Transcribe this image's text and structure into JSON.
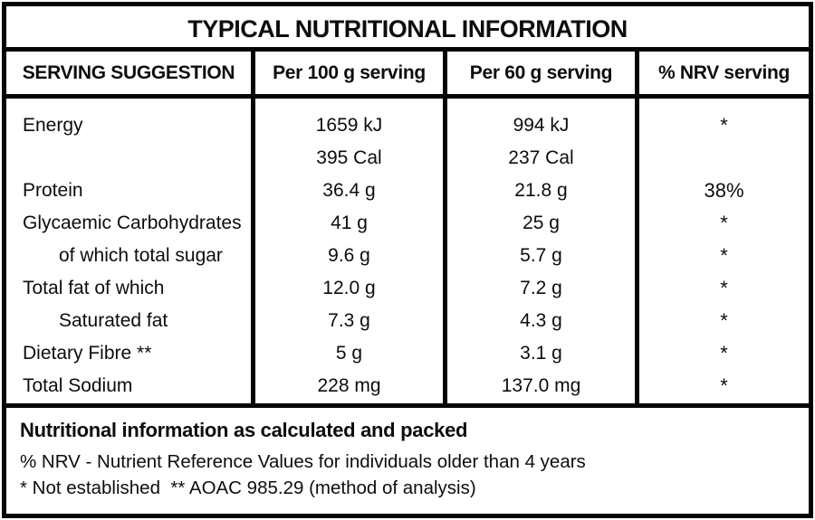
{
  "title": "TYPICAL NUTRITIONAL INFORMATION",
  "table": {
    "columns": [
      "SERVING SUGGESTION",
      "Per 100 g serving",
      "Per 60 g serving",
      "% NRV serving"
    ],
    "rows": [
      {
        "label": "Energy",
        "per100": "1659 kJ",
        "per60": "994 kJ",
        "nrv": "*"
      },
      {
        "label": "",
        "per100": "395 Cal",
        "per60": "237 Cal",
        "nrv": ""
      },
      {
        "label": "Protein",
        "per100": "36.4 g",
        "per60": "21.8 g",
        "nrv": "38%"
      },
      {
        "label": "Glycaemic Carbohydrates",
        "per100": "41 g",
        "per60": "25 g",
        "nrv": "*"
      },
      {
        "label": "of which total sugar",
        "per100": "9.6 g",
        "per60": "5.7 g",
        "nrv": "*"
      },
      {
        "label": "Total fat of which",
        "per100": "12.0 g",
        "per60": "7.2 g",
        "nrv": "*"
      },
      {
        "label": "Saturated fat",
        "per100": "7.3 g",
        "per60": "4.3 g",
        "nrv": "*"
      },
      {
        "label": "Dietary Fibre **",
        "per100": "5 g",
        "per60": "3.1 g",
        "nrv": "*"
      },
      {
        "label": "Total Sodium",
        "per100": "228 mg",
        "per60": "137.0 mg",
        "nrv": "*"
      }
    ]
  },
  "footer": {
    "line1": "Nutritional information as calculated and packed",
    "line2": "% NRV - Nutrient Reference Values for individuals older than 4 years",
    "line3": "* Not established  ** AOAC 985.29 (method of analysis)"
  },
  "colors": {
    "border": "#050505",
    "background": "#ffffff",
    "text": "#0d0d0d"
  }
}
